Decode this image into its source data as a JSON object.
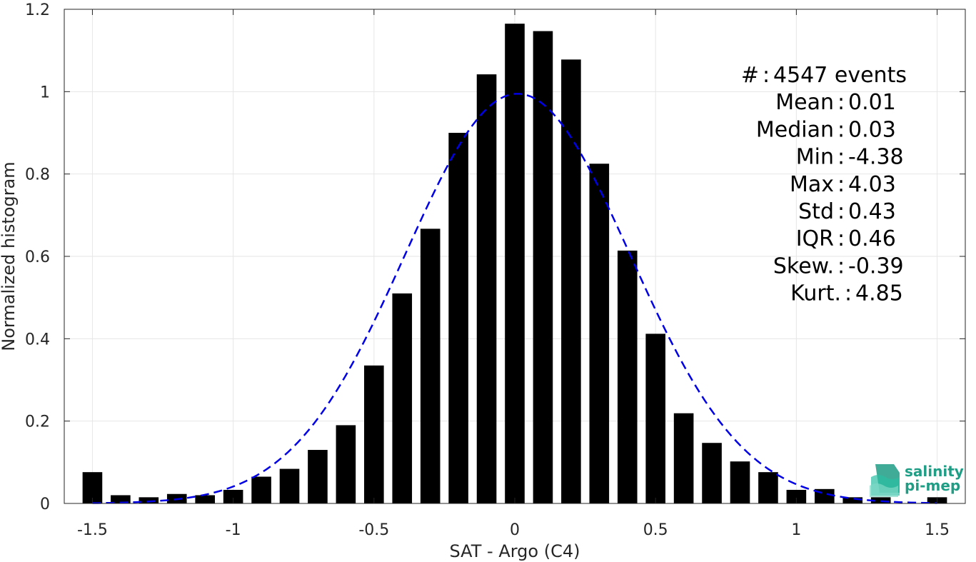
{
  "chart_data": {
    "type": "bar",
    "xlabel": "SAT - Argo (C4)",
    "ylabel": "Normalized histogram",
    "xlim": [
      -1.6,
      1.6
    ],
    "ylim": [
      0,
      1.2
    ],
    "xticks": [
      -1.5,
      -1,
      -0.5,
      0,
      0.5,
      1,
      1.5
    ],
    "xtick_labels": [
      "-1.5",
      "-1",
      "-0.5",
      "0",
      "0.5",
      "1",
      "1.5"
    ],
    "yticks": [
      0,
      0.2,
      0.4,
      0.6,
      0.8,
      1,
      1.2
    ],
    "ytick_labels": [
      "0",
      "0.2",
      "0.4",
      "0.6",
      "0.8",
      "1",
      "1.2"
    ],
    "grid": true,
    "bar_color": "#000000",
    "bin_width": 0.1,
    "bins": [
      {
        "x": -1.5,
        "value": 0.076
      },
      {
        "x": -1.4,
        "value": 0.02
      },
      {
        "x": -1.3,
        "value": 0.015
      },
      {
        "x": -1.2,
        "value": 0.023
      },
      {
        "x": -1.1,
        "value": 0.02
      },
      {
        "x": -1.0,
        "value": 0.033
      },
      {
        "x": -0.9,
        "value": 0.065
      },
      {
        "x": -0.8,
        "value": 0.084
      },
      {
        "x": -0.7,
        "value": 0.13
      },
      {
        "x": -0.6,
        "value": 0.19
      },
      {
        "x": -0.5,
        "value": 0.335
      },
      {
        "x": -0.4,
        "value": 0.51
      },
      {
        "x": -0.3,
        "value": 0.667
      },
      {
        "x": -0.2,
        "value": 0.9
      },
      {
        "x": -0.1,
        "value": 1.042
      },
      {
        "x": 0.0,
        "value": 1.165
      },
      {
        "x": 0.1,
        "value": 1.147
      },
      {
        "x": 0.2,
        "value": 1.078
      },
      {
        "x": 0.3,
        "value": 0.825
      },
      {
        "x": 0.4,
        "value": 0.614
      },
      {
        "x": 0.5,
        "value": 0.412
      },
      {
        "x": 0.6,
        "value": 0.219
      },
      {
        "x": 0.7,
        "value": 0.147
      },
      {
        "x": 0.8,
        "value": 0.102
      },
      {
        "x": 0.9,
        "value": 0.076
      },
      {
        "x": 1.0,
        "value": 0.033
      },
      {
        "x": 1.1,
        "value": 0.035
      },
      {
        "x": 1.2,
        "value": 0.015
      },
      {
        "x": 1.3,
        "value": 0.015
      },
      {
        "x": 1.5,
        "value": 0.015
      }
    ],
    "fit_curve": {
      "type": "gaussian",
      "mean": 0.01,
      "std": 0.4,
      "peak": 0.995,
      "x_range": [
        -1.5,
        1.5
      ],
      "color": "#0000e6",
      "style": "dashed"
    },
    "stats_box": [
      {
        "label": "#  ",
        "value": "4547 events"
      },
      {
        "label": "Mean",
        "value": "0.01"
      },
      {
        "label": "Median",
        "value": "0.03"
      },
      {
        "label": "Min",
        "value": "-4.38"
      },
      {
        "label": "Max",
        "value": "4.03"
      },
      {
        "label": "Std",
        "value": "0.43"
      },
      {
        "label": "IQR",
        "value": "0.46"
      },
      {
        "label": "Skew.",
        "value": "-0.39"
      },
      {
        "label": "Kurt.",
        "value": "4.85"
      }
    ]
  },
  "logo": {
    "line1": "salinity",
    "line2": "pi-mep",
    "icon": "waves-icon",
    "color": "#1f9e86"
  }
}
